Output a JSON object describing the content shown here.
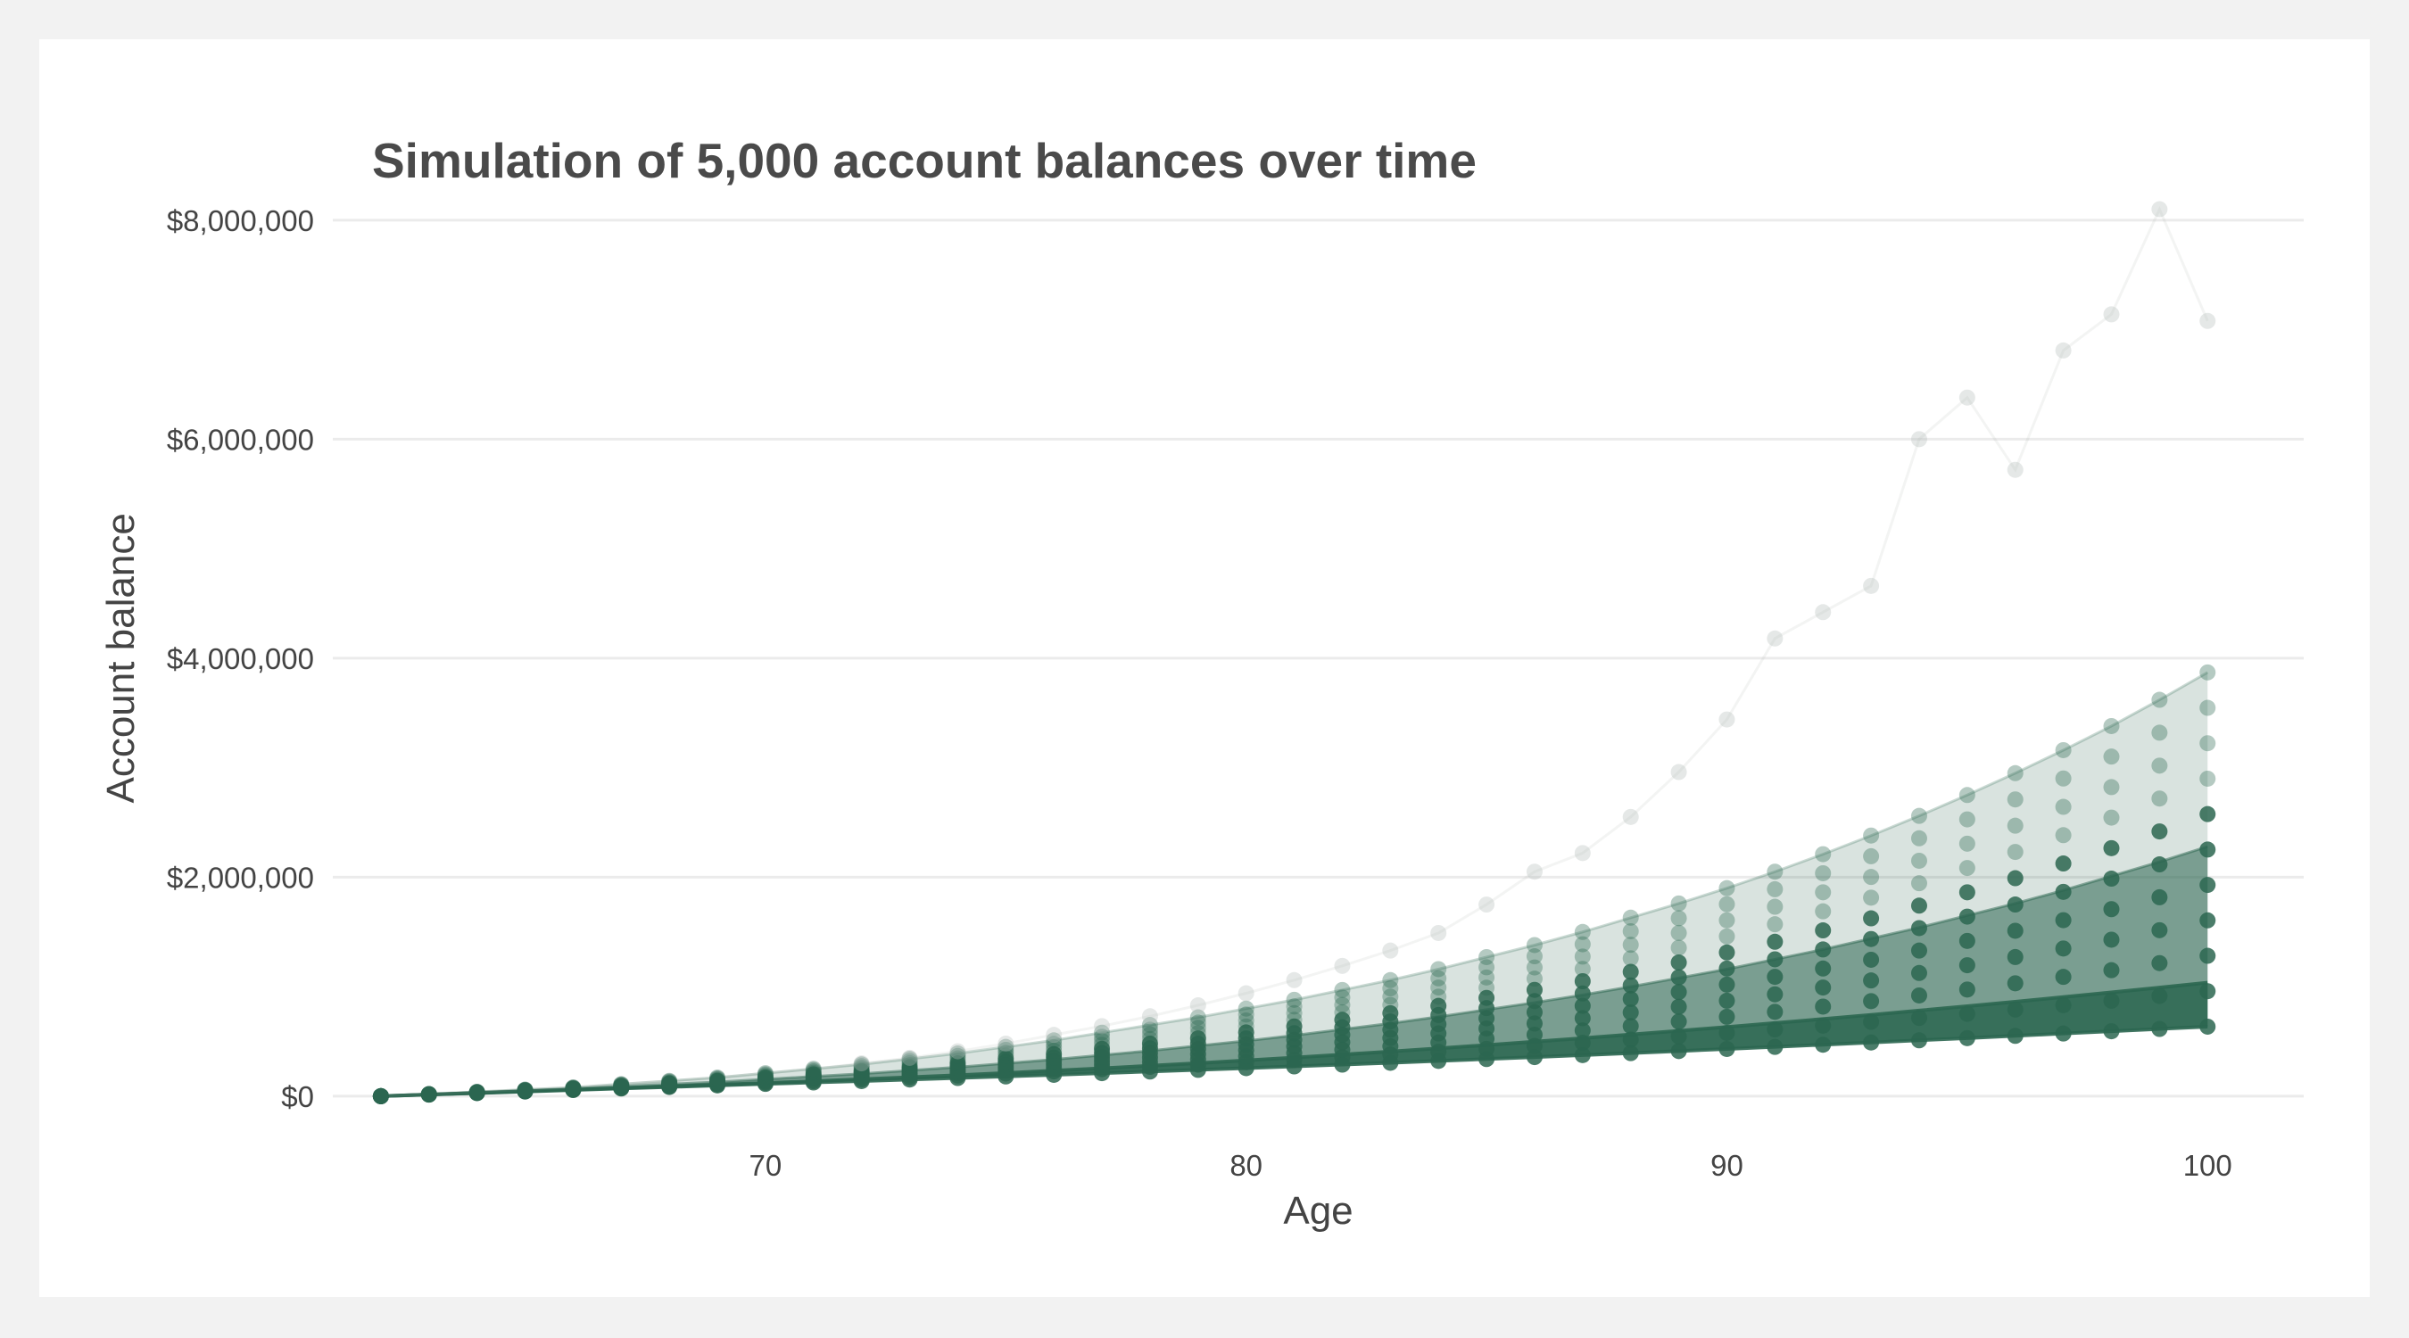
{
  "chart_data": {
    "type": "line",
    "title": "Simulation of 5,000 account balances over time",
    "xlabel": "Age",
    "ylabel": "Account balance",
    "xlim": [
      61,
      102
    ],
    "ylim": [
      -400000,
      8300000
    ],
    "x_ticks": [
      70,
      80,
      90,
      100
    ],
    "x_tick_labels": [
      "70",
      "80",
      "90",
      "100"
    ],
    "y_ticks": [
      0,
      2000000,
      4000000,
      6000000,
      8000000
    ],
    "y_tick_labels": [
      "$0",
      "$2,000,000",
      "$4,000,000",
      "$6,000,000",
      "$8,000,000"
    ],
    "grid": "horizontal",
    "color": "#2b6650",
    "simulations": 5000,
    "x": [
      62,
      63,
      64,
      65,
      66,
      67,
      68,
      69,
      70,
      71,
      72,
      73,
      74,
      75,
      76,
      77,
      78,
      79,
      80,
      81,
      82,
      83,
      84,
      85,
      86,
      87,
      88,
      89,
      90,
      91,
      92,
      93,
      94,
      95,
      96,
      97,
      98,
      99,
      100
    ],
    "series": [
      {
        "values": [
          0,
          20000,
          40000,
          60000,
          80000,
          110000,
          140000,
          170000,
          210000,
          250000,
          290000,
          340000,
          390000,
          450000,
          510000,
          580000,
          650000,
          720000,
          800000,
          880000,
          970000,
          1060000,
          1160000,
          1270000,
          1380000,
          1500000,
          1630000,
          1760000,
          1900000,
          2050000,
          2210000,
          2380000,
          2560000,
          2750000,
          2950000,
          3160000,
          3380000,
          3620000,
          3870000
        ]
      },
      {
        "values": [
          0,
          18000,
          35000,
          52000,
          70000,
          90000,
          110000,
          130000,
          155000,
          180000,
          205000,
          235000,
          265000,
          300000,
          335000,
          375000,
          415000,
          460000,
          505000,
          555000,
          610000,
          665000,
          725000,
          790000,
          855000,
          925000,
          1000000,
          1080000,
          1160000,
          1250000,
          1340000,
          1440000,
          1540000,
          1650000,
          1760000,
          1880000,
          2010000,
          2140000,
          2280000
        ]
      },
      {
        "values": [
          0,
          15000,
          30000,
          45000,
          60000,
          75000,
          90000,
          105000,
          120000,
          137000,
          155000,
          173000,
          192000,
          212000,
          233000,
          255000,
          278000,
          302000,
          327000,
          353000,
          380000,
          408000,
          437000,
          467000,
          498000,
          530000,
          563000,
          597000,
          632000,
          668000,
          705000,
          743000,
          782000,
          822000,
          863000,
          905000,
          948000,
          992000,
          1037000
        ]
      },
      {
        "values": [
          0,
          14000,
          28000,
          42000,
          56000,
          70000,
          84000,
          98000,
          112000,
          125000,
          138000,
          152000,
          166000,
          180000,
          195000,
          210000,
          225000,
          240000,
          256000,
          272000,
          288000,
          305000,
          322000,
          339000,
          357000,
          375000,
          393000,
          412000,
          431000,
          450000,
          470000,
          490000,
          510000,
          530000,
          551000,
          572000,
          593000,
          614000,
          635000
        ]
      },
      {
        "values": [
          0,
          20000,
          40000,
          60000,
          80000,
          110000,
          140000,
          170000,
          210000,
          250000,
          300000,
          350000,
          410000,
          480000,
          560000,
          640000,
          730000,
          830000,
          940000,
          1060000,
          1190000,
          1330000,
          1490000,
          1750000,
          2050000,
          2220000,
          2550000,
          2960000,
          3440000,
          4180000,
          4420000,
          4660000,
          6000000,
          6380000,
          5720000,
          6810000,
          7140000,
          8100000,
          7080000
        ]
      }
    ]
  }
}
